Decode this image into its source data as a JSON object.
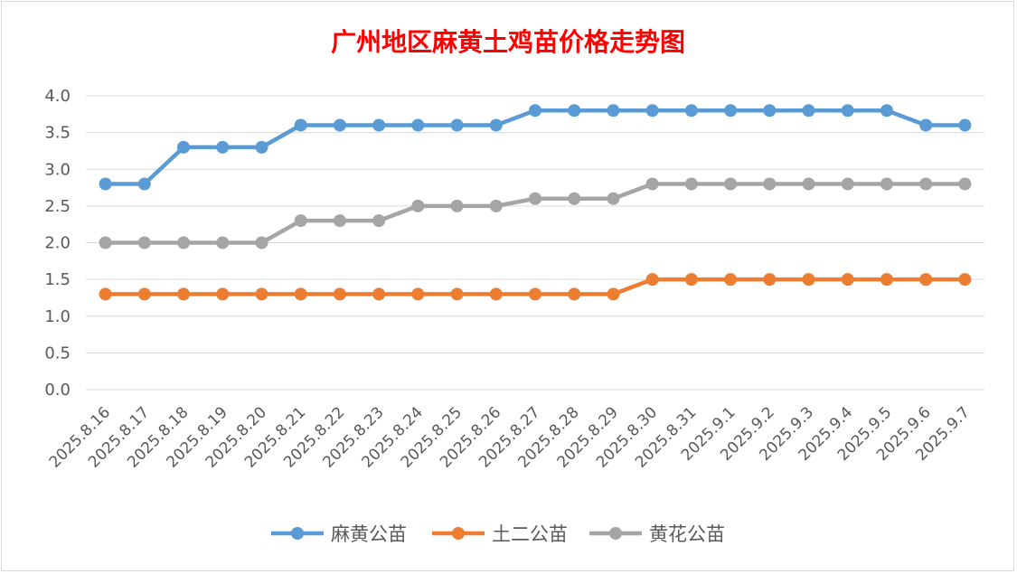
{
  "chart_data": {
    "type": "line",
    "title": "广州地区麻黄土鸡苗价格走势图",
    "categories": [
      "2025.8.16",
      "2025.8.17",
      "2025.8.18",
      "2025.8.19",
      "2025.8.20",
      "2025.8.21",
      "2025.8.22",
      "2025.8.23",
      "2025.8.24",
      "2025.8.25",
      "2025.8.26",
      "2025.8.27",
      "2025.8.28",
      "2025.8.29",
      "2025.8.30",
      "2025.8.31",
      "2025.9.1",
      "2025.9.2",
      "2025.9.3",
      "2025.9.4",
      "2025.9.5",
      "2025.9.6",
      "2025.9.7"
    ],
    "ylim": [
      0,
      4
    ],
    "yticks": [
      "0.0",
      "0.5",
      "1.0",
      "1.5",
      "2.0",
      "2.5",
      "3.0",
      "3.5",
      "4.0"
    ],
    "grid": true,
    "legend_position": "bottom",
    "series": [
      {
        "name": "麻黄公苗",
        "color": "#5b9bd5",
        "values": [
          2.8,
          2.8,
          3.3,
          3.3,
          3.3,
          3.6,
          3.6,
          3.6,
          3.6,
          3.6,
          3.6,
          3.8,
          3.8,
          3.8,
          3.8,
          3.8,
          3.8,
          3.8,
          3.8,
          3.8,
          3.8,
          3.6,
          3.6
        ]
      },
      {
        "name": "土二公苗",
        "color": "#ed7d31",
        "values": [
          1.3,
          1.3,
          1.3,
          1.3,
          1.3,
          1.3,
          1.3,
          1.3,
          1.3,
          1.3,
          1.3,
          1.3,
          1.3,
          1.3,
          1.5,
          1.5,
          1.5,
          1.5,
          1.5,
          1.5,
          1.5,
          1.5,
          1.5
        ]
      },
      {
        "name": "黄花公苗",
        "color": "#a5a5a5",
        "values": [
          2.0,
          2.0,
          2.0,
          2.0,
          2.0,
          2.3,
          2.3,
          2.3,
          2.5,
          2.5,
          2.5,
          2.6,
          2.6,
          2.6,
          2.8,
          2.8,
          2.8,
          2.8,
          2.8,
          2.8,
          2.8,
          2.8,
          2.8
        ]
      }
    ]
  }
}
